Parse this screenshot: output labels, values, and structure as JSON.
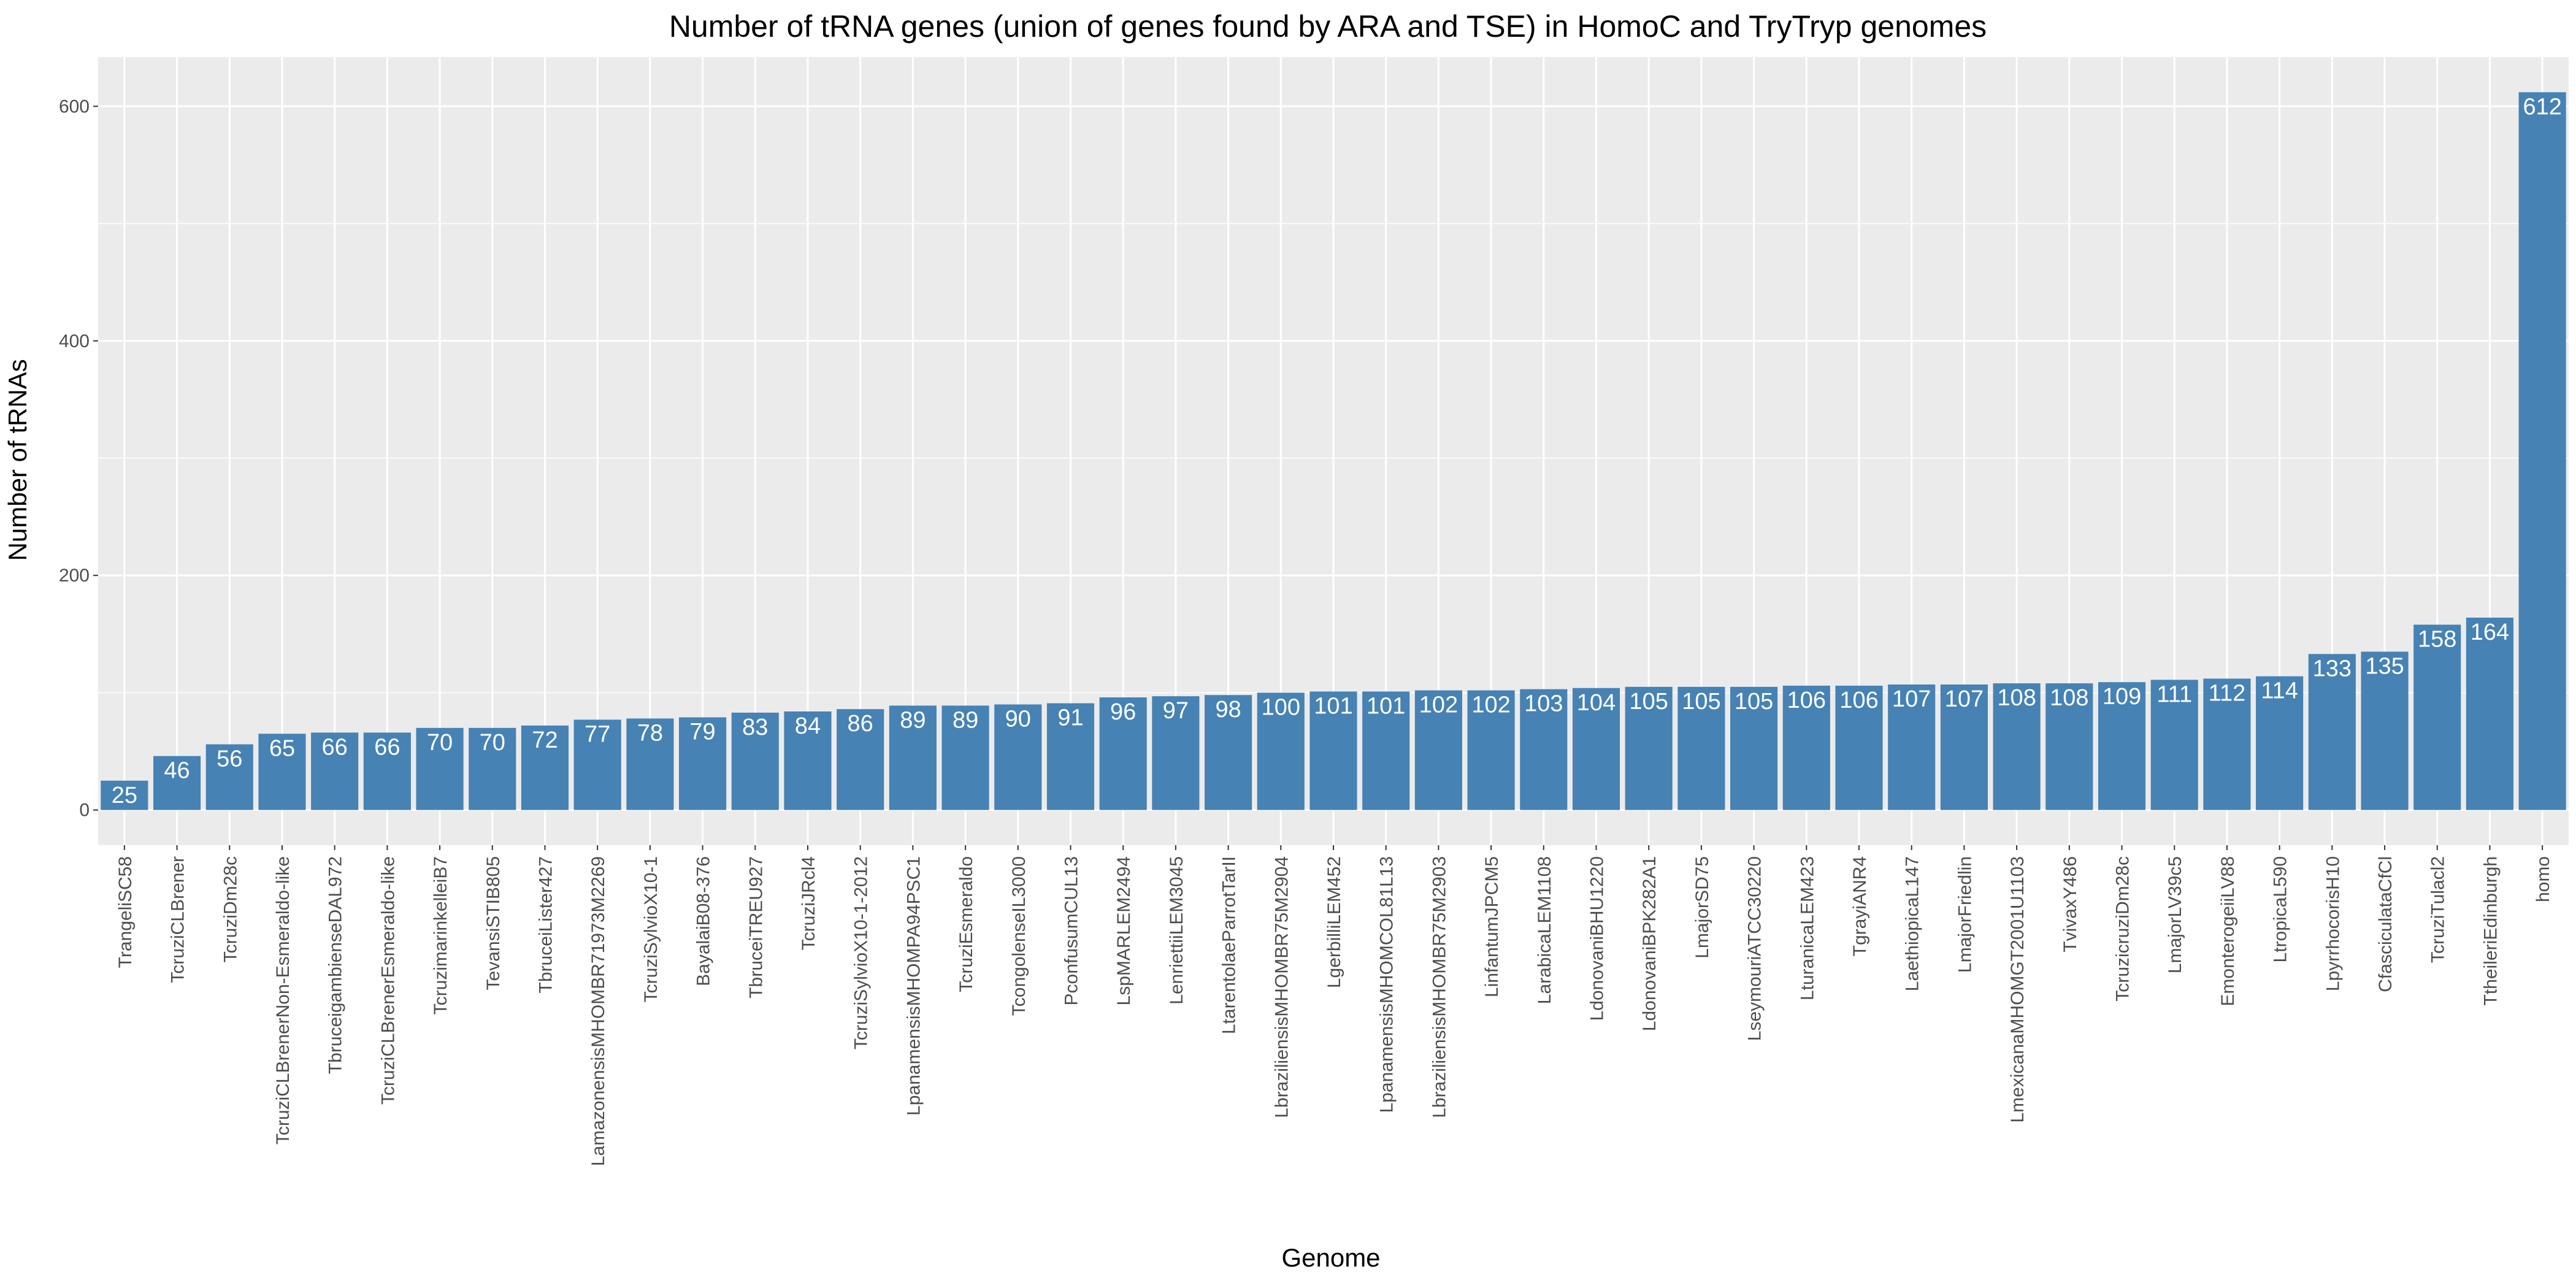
{
  "colors": {
    "panel": "#ebebeb",
    "grid_major": "#ffffff",
    "bar": "#4682b4",
    "tick": "#333333",
    "data_label": "#ffffff"
  },
  "chart_data": {
    "type": "bar",
    "title": "Number of tRNA genes (union of genes found by ARA and TSE) in HomoC and TryTryp genomes",
    "xlabel": "Genome",
    "ylabel": "Number of tRNAs",
    "ylim": [
      -30,
      642
    ],
    "yticks": [
      0,
      200,
      400,
      600
    ],
    "grid": true,
    "legend": "none",
    "categories": [
      "TrangeliSC58",
      "TcruziCLBrener",
      "TcruziDm28c",
      "TcruziCLBrenerNon-Esmeraldo-like",
      "TbruceigambienseDAL972",
      "TcruziCLBrenerEsmeraldo-like",
      "TcruzimarinkelleiB7",
      "TevansiSTIB805",
      "TbruceiLister427",
      "LamazonensisMHOMBR71973M2269",
      "TcruziSylvioX10-1",
      "BayalaiB08-376",
      "TbruceiTREU927",
      "TcruziJRcl4",
      "TcruziSylvioX10-1-2012",
      "LpanamensisMHOMPA94PSC1",
      "TcruziEsmeraldo",
      "TcongolenseIL3000",
      "PconfusumCUL13",
      "LspMARLEM2494",
      "LenriettiiLEM3045",
      "LtarentolaeParrotTarII",
      "LbraziliensisMHOMBR75M2904",
      "LgerbilliLEM452",
      "LpanamensisMHOMCOL81L13",
      "LbraziliensisMHOMBR75M2903",
      "LinfantumJPCM5",
      "LarabicaLEM1108",
      "LdonovaniBHU1220",
      "LdonovaniBPK282A1",
      "LmajorSD75",
      "LseymouriATCC30220",
      "LturanicaLEM423",
      "TgrayiANR4",
      "LaethiopicaL147",
      "LmajorFriedlin",
      "LmexicanaMHOMGT2001U1103",
      "TvivaxY486",
      "TcruzicruziDm28c",
      "LmajorLV39c5",
      "EmonterogeiiLV88",
      "LtropicaL590",
      "LpyrrhocorisH10",
      "CfasciculataCfCl",
      "TcruziTulacl2",
      "TtheileriEdinburgh",
      "homo"
    ],
    "values": [
      25,
      46,
      56,
      65,
      66,
      66,
      70,
      70,
      72,
      77,
      78,
      79,
      83,
      84,
      86,
      89,
      89,
      90,
      91,
      96,
      97,
      98,
      100,
      101,
      101,
      102,
      102,
      103,
      104,
      105,
      105,
      105,
      106,
      106,
      107,
      107,
      108,
      108,
      109,
      111,
      112,
      114,
      133,
      135,
      158,
      164,
      612
    ]
  }
}
